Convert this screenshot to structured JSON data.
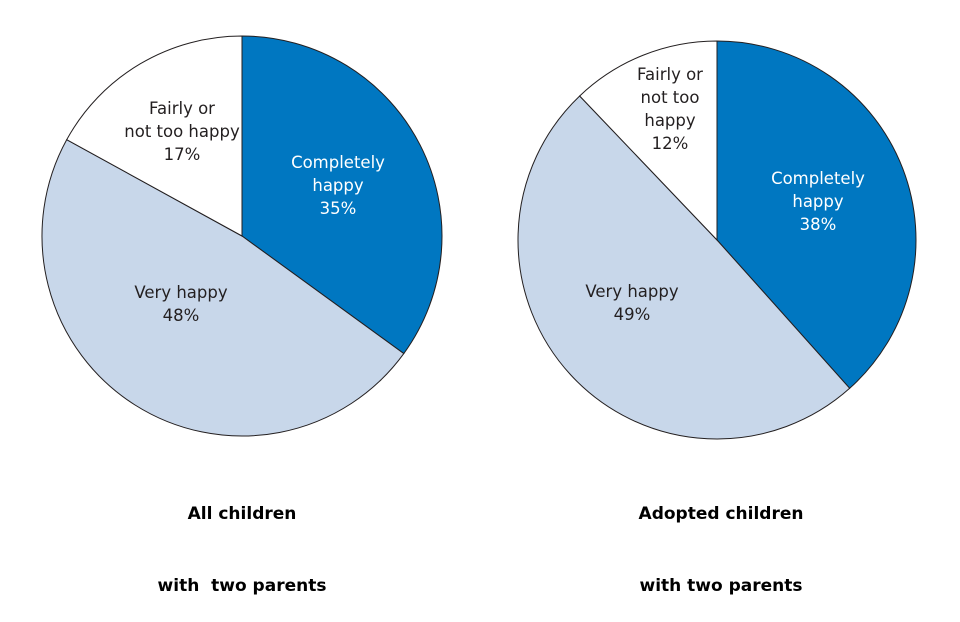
{
  "chart_data": [
    {
      "type": "pie",
      "title_lines": [
        "All children",
        "with  two parents"
      ],
      "slices": [
        {
          "label": [
            "Completely",
            "happy"
          ],
          "value": 35,
          "value_label": "35%",
          "color": "#0077c1"
        },
        {
          "label": [
            "Very happy"
          ],
          "value": 48,
          "value_label": "48%",
          "color": "#c8d7ea"
        },
        {
          "label": [
            "Fairly or",
            "not too happy"
          ],
          "value": 17,
          "value_label": "17%",
          "color": "#ffffff"
        }
      ],
      "start": "top",
      "direction": "clockwise"
    },
    {
      "type": "pie",
      "title_lines": [
        "Adopted children",
        "with two parents"
      ],
      "slices": [
        {
          "label": [
            "Completely",
            "happy"
          ],
          "value": 38,
          "value_label": "38%",
          "color": "#0077c1"
        },
        {
          "label": [
            "Very happy"
          ],
          "value": 49,
          "value_label": "49%",
          "color": "#c8d7ea"
        },
        {
          "label": [
            "Fairly or",
            "not too",
            "happy"
          ],
          "value": 12,
          "value_label": "12%",
          "color": "#ffffff"
        }
      ],
      "start": "top",
      "direction": "clockwise"
    }
  ]
}
